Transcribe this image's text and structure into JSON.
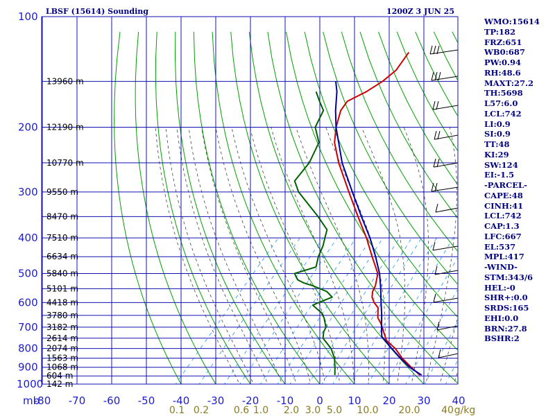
{
  "chart_data": {
    "type": "skew-t log-p sounding",
    "title_left": "LBSF (15614) Sounding",
    "title_right": "1200Z  3 JUN 25",
    "pressure_axis_unit": "mb",
    "pressure_levels": [
      100,
      200,
      300,
      400,
      500,
      600,
      700,
      800,
      900,
      1000
    ],
    "pressure_tick_labels": [
      "100",
      "200",
      "300",
      "400",
      "500",
      "600",
      "700",
      "800",
      "900",
      "1000"
    ],
    "temperature_axis_values": [
      -80,
      -70,
      -60,
      -50,
      -40,
      -30,
      -20,
      -10,
      0,
      10,
      20,
      30,
      40
    ],
    "temperature_tick_labels": [
      "-80",
      "-70",
      "-60",
      "-50",
      "-40",
      "-30",
      "-20",
      "-10",
      "0",
      "10",
      "20",
      "30",
      "40"
    ],
    "mixing_ratio_labels": [
      "0.1",
      "0.2",
      "0.6",
      "1.0",
      "2.0",
      "3.0",
      "5.0",
      "10.0",
      "20.0",
      "40",
      "g/kg"
    ],
    "height_labels": [
      {
        "p": 150,
        "text": "13960 m"
      },
      {
        "p": 200,
        "text": "12190 m"
      },
      {
        "p": 250,
        "text": "10770 m"
      },
      {
        "p": 300,
        "text": "9550 m"
      },
      {
        "p": 350,
        "text": "8470 m"
      },
      {
        "p": 400,
        "text": "7510 m"
      },
      {
        "p": 450,
        "text": "6634 m"
      },
      {
        "p": 500,
        "text": "5840 m"
      },
      {
        "p": 550,
        "text": "5101 m"
      },
      {
        "p": 600,
        "text": "4418 m"
      },
      {
        "p": 650,
        "text": "3780 m"
      },
      {
        "p": 700,
        "text": "3182 m"
      },
      {
        "p": 750,
        "text": "2614 m"
      },
      {
        "p": 800,
        "text": "2074 m"
      },
      {
        "p": 850,
        "text": "1563 m"
      },
      {
        "p": 900,
        "text": "1068 m"
      },
      {
        "p": 950,
        "text": "604 m"
      },
      {
        "p": 1000,
        "text": "142 m"
      }
    ],
    "temperature_profile": [
      [
        945,
        26.5
      ],
      [
        900,
        22.0
      ],
      [
        850,
        17.0
      ],
      [
        800,
        12.5
      ],
      [
        760,
        7.8
      ],
      [
        700,
        3.2
      ],
      [
        680,
        1.5
      ],
      [
        660,
        -0.5
      ],
      [
        620,
        -3.0
      ],
      [
        600,
        -5.5
      ],
      [
        580,
        -7.5
      ],
      [
        560,
        -8.8
      ],
      [
        540,
        -9.5
      ],
      [
        500,
        -12.0
      ],
      [
        450,
        -18.0
      ],
      [
        400,
        -24.5
      ],
      [
        350,
        -32.5
      ],
      [
        300,
        -41.5
      ],
      [
        250,
        -52.0
      ],
      [
        220,
        -58.5
      ],
      [
        200,
        -62.0
      ],
      [
        180,
        -65.0
      ],
      [
        170,
        -65.5
      ],
      [
        160,
        -62.5
      ],
      [
        150,
        -60.5
      ],
      [
        140,
        -59.5
      ],
      [
        125,
        -60.5
      ]
    ],
    "dewpoint_profile": [
      [
        945,
        2.0
      ],
      [
        900,
        0.0
      ],
      [
        850,
        -2.5
      ],
      [
        800,
        -6.0
      ],
      [
        750,
        -11.0
      ],
      [
        720,
        -12.5
      ],
      [
        700,
        -13.0
      ],
      [
        680,
        -14.5
      ],
      [
        660,
        -16.0
      ],
      [
        640,
        -18.0
      ],
      [
        610,
        -22.5
      ],
      [
        600,
        -21.5
      ],
      [
        580,
        -19.0
      ],
      [
        560,
        -22.0
      ],
      [
        540,
        -27.5
      ],
      [
        530,
        -31.0
      ],
      [
        520,
        -33.5
      ],
      [
        500,
        -36.0
      ],
      [
        480,
        -31.5
      ],
      [
        450,
        -33.5
      ],
      [
        420,
        -35.0
      ],
      [
        400,
        -36.5
      ],
      [
        380,
        -38.0
      ],
      [
        350,
        -44.0
      ],
      [
        300,
        -56.0
      ],
      [
        280,
        -60.0
      ],
      [
        250,
        -60.5
      ],
      [
        220,
        -63.0
      ],
      [
        200,
        -68.0
      ],
      [
        180,
        -70.0
      ],
      [
        170,
        -73.5
      ],
      [
        160,
        -77.0
      ]
    ],
    "parcel_profile": [
      [
        945,
        27.0
      ],
      [
        900,
        21.5
      ],
      [
        850,
        16.5
      ],
      [
        800,
        11.5
      ],
      [
        742,
        5.5
      ],
      [
        700,
        3.0
      ],
      [
        650,
        0.0
      ],
      [
        600,
        -3.5
      ],
      [
        550,
        -7.2
      ],
      [
        500,
        -11.5
      ],
      [
        450,
        -17.0
      ],
      [
        400,
        -23.5
      ],
      [
        350,
        -31.5
      ],
      [
        300,
        -40.5
      ],
      [
        250,
        -51.0
      ],
      [
        200,
        -62.0
      ],
      [
        180,
        -66.5
      ],
      [
        160,
        -71.0
      ],
      [
        150,
        -74.0
      ]
    ],
    "wind_barbs_right_side": true
  },
  "stats": [
    "WMO:15614",
    "TP:182",
    "FRZ:651",
    "WB0:687",
    "PW:0.94",
    "RH:48.6",
    "MAXT:27.2",
    "TH:5698",
    "L57:6.0",
    "LCL:742",
    "LI:0.9",
    "SI:0.9",
    "TT:48",
    "KI:29",
    "SW:124",
    "EI:-1.5",
    "-PARCEL-",
    "CAPE:48",
    "CINH:41",
    "LCL:742",
    "CAP:1.3",
    "LFC:667",
    "EL:537",
    "MPL:417",
    "-WIND-",
    "STM:343/6",
    "HEL:-0",
    "SHR+:0.0",
    "SRDS:165",
    "EHI:0.0",
    "BRN:27.8",
    "BSHR:2"
  ],
  "colors": {
    "grid": "#1010b0",
    "dry_adiabat": "#00a000",
    "moist_adiabat": "#404040",
    "mixing_ratio": "#1e90ff",
    "temperature": "#cc0000",
    "dewpoint": "#006000",
    "parcel": "#0000a0",
    "text": "#000080"
  }
}
